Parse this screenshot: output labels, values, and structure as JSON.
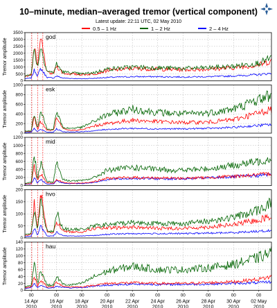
{
  "header": {
    "title": "10–minute, median–averaged tremor (vertical component)",
    "subtitle": "Latest update: 22:11 UTC, 02 May 2010",
    "logo": "star-logo-icon"
  },
  "legend": [
    {
      "label": "0.5 – 1 Hz",
      "color": "#ff0000"
    },
    {
      "label": "1 – 2 Hz",
      "color": "#006400"
    },
    {
      "label": "2 – 4 Hz",
      "color": "#0000ff"
    }
  ],
  "colors": {
    "low": "#ff0000",
    "mid": "#006400",
    "high": "#0000ff",
    "grid": "#b0b0b0",
    "event": "#ff0000"
  },
  "chart_data": {
    "type": "line",
    "ylabel": "Tremor amplitude",
    "x_tick_labels": [
      {
        "time": "00",
        "date": "14 Apr",
        "year": "2010"
      },
      {
        "time": "00",
        "date": "16 Apr",
        "year": "2010"
      },
      {
        "time": "00",
        "date": "18 Apr",
        "year": "2010"
      },
      {
        "time": "00",
        "date": "20 Apr",
        "year": "2010"
      },
      {
        "time": "00",
        "date": "22 Apr",
        "year": "2010"
      },
      {
        "time": "00",
        "date": "24 Apr",
        "year": "2010"
      },
      {
        "time": "00",
        "date": "26 Apr",
        "year": "2010"
      },
      {
        "time": "00",
        "date": "28 Apr",
        "year": "2010"
      },
      {
        "time": "00",
        "date": "30 Apr",
        "year": "2010"
      },
      {
        "time": "00",
        "date": "02 May",
        "year": "2010"
      }
    ],
    "xlim": [
      "2010-04-13T12:00",
      "2010-05-03T00:00"
    ],
    "event_markers": [
      "2010-04-14T01:00",
      "2010-04-14T12:00",
      "2010-04-14T22:00"
    ],
    "panels": [
      {
        "station": "god",
        "ylim": [
          0,
          3500
        ],
        "yticks": [
          0,
          500,
          1000,
          1500,
          2000,
          2500,
          3000,
          3500
        ],
        "key_x": [
          "2010-04-13T12:00",
          "2010-04-14T00:00",
          "2010-04-14T06:00",
          "2010-04-14T12:00",
          "2010-04-14T18:00",
          "2010-04-15T06:00",
          "2010-04-15T18:00",
          "2010-04-16T00:00",
          "2010-04-16T12:00",
          "2010-04-17T00:00",
          "2010-04-18T00:00",
          "2010-04-19T00:00",
          "2010-04-20T00:00",
          "2010-04-22T00:00",
          "2010-04-24T00:00",
          "2010-04-26T00:00",
          "2010-04-28T00:00",
          "2010-04-30T00:00",
          "2010-05-02T00:00",
          "2010-05-03T00:00"
        ],
        "series": [
          {
            "name": "0.5 – 1 Hz",
            "values": [
              300,
              450,
              2600,
              900,
              3100,
              600,
              500,
              1100,
              550,
              500,
              450,
              500,
              750,
              900,
              850,
              800,
              850,
              950,
              1150,
              1450
            ]
          },
          {
            "name": "1 – 2 Hz",
            "values": [
              350,
              500,
              2300,
              1000,
              2500,
              700,
              600,
              1200,
              650,
              600,
              500,
              600,
              850,
              1000,
              950,
              900,
              950,
              1050,
              1300,
              1650
            ]
          },
          {
            "name": "2 – 4 Hz",
            "values": [
              150,
              200,
              800,
              350,
              900,
              250,
              200,
              350,
              200,
              180,
              150,
              180,
              250,
              300,
              300,
              280,
              300,
              350,
              450,
              550
            ]
          }
        ]
      },
      {
        "station": "esk",
        "ylim": [
          0,
          1000
        ],
        "yticks": [
          0,
          200,
          400,
          600,
          800,
          1000
        ],
        "key_x": [
          "2010-04-13T12:00",
          "2010-04-14T00:00",
          "2010-04-14T06:00",
          "2010-04-14T12:00",
          "2010-04-14T18:00",
          "2010-04-15T06:00",
          "2010-04-15T18:00",
          "2010-04-16T00:00",
          "2010-04-16T12:00",
          "2010-04-17T00:00",
          "2010-04-18T00:00",
          "2010-04-19T00:00",
          "2010-04-20T00:00",
          "2010-04-22T00:00",
          "2010-04-24T00:00",
          "2010-04-26T00:00",
          "2010-04-28T00:00",
          "2010-04-30T00:00",
          "2010-05-02T00:00",
          "2010-05-03T00:00"
        ],
        "series": [
          {
            "name": "0.5 – 1 Hz",
            "values": [
              30,
              40,
              350,
              80,
              250,
              60,
              60,
              300,
              90,
              60,
              70,
              150,
              200,
              270,
              240,
              220,
              230,
              280,
              420,
              500
            ]
          },
          {
            "name": "1 – 2 Hz",
            "values": [
              40,
              50,
              450,
              100,
              500,
              80,
              80,
              450,
              120,
              100,
              120,
              250,
              380,
              500,
              430,
              400,
              420,
              500,
              700,
              800
            ]
          },
          {
            "name": "2 – 4 Hz",
            "values": [
              10,
              20,
              100,
              30,
              80,
              20,
              20,
              90,
              30,
              25,
              30,
              50,
              80,
              100,
              90,
              90,
              100,
              120,
              160,
              180
            ]
          }
        ]
      },
      {
        "station": "mid",
        "ylim": [
          0,
          1200
        ],
        "yticks": [
          0,
          200,
          400,
          600,
          800,
          1000,
          1200
        ],
        "key_x": [
          "2010-04-13T12:00",
          "2010-04-14T00:00",
          "2010-04-14T06:00",
          "2010-04-14T12:00",
          "2010-04-14T18:00",
          "2010-04-15T06:00",
          "2010-04-15T18:00",
          "2010-04-16T00:00",
          "2010-04-16T12:00",
          "2010-04-17T00:00",
          "2010-04-18T00:00",
          "2010-04-19T00:00",
          "2010-04-20T00:00",
          "2010-04-22T00:00",
          "2010-04-24T00:00",
          "2010-04-26T00:00",
          "2010-04-28T00:00",
          "2010-04-30T00:00",
          "2010-05-02T00:00",
          "2010-05-03T00:00"
        ],
        "series": [
          {
            "name": "0.5 – 1 Hz",
            "values": [
              40,
              50,
              500,
              100,
              300,
              70,
              60,
              150,
              80,
              60,
              60,
              100,
              180,
              200,
              190,
              180,
              200,
              230,
              270,
              300
            ]
          },
          {
            "name": "1 – 2 Hz",
            "values": [
              60,
              80,
              800,
              150,
              600,
              100,
              90,
              600,
              150,
              120,
              120,
              200,
              380,
              450,
              400,
              380,
              420,
              500,
              600,
              680
            ]
          },
          {
            "name": "2 – 4 Hz",
            "values": [
              30,
              40,
              200,
              60,
              150,
              40,
              40,
              120,
              60,
              50,
              50,
              80,
              150,
              180,
              170,
              170,
              190,
              220,
              250,
              280
            ]
          }
        ]
      },
      {
        "station": "hvo",
        "ylim": [
          0,
          200
        ],
        "yticks": [
          0,
          50,
          100,
          150,
          200
        ],
        "key_x": [
          "2010-04-13T12:00",
          "2010-04-14T00:00",
          "2010-04-14T06:00",
          "2010-04-14T12:00",
          "2010-04-14T18:00",
          "2010-04-15T06:00",
          "2010-04-15T18:00",
          "2010-04-16T00:00",
          "2010-04-16T12:00",
          "2010-04-17T00:00",
          "2010-04-18T00:00",
          "2010-04-19T00:00",
          "2010-04-20T00:00",
          "2010-04-22T00:00",
          "2010-04-24T00:00",
          "2010-04-26T00:00",
          "2010-04-28T00:00",
          "2010-04-30T00:00",
          "2010-05-02T00:00",
          "2010-05-03T00:00"
        ],
        "series": [
          {
            "name": "0.5 – 1 Hz",
            "values": [
              10,
              15,
              150,
              30,
              195,
              25,
              20,
              70,
              30,
              25,
              25,
              40,
              40,
              45,
              40,
              40,
              45,
              55,
              75,
              90
            ]
          },
          {
            "name": "1 – 2 Hz",
            "values": [
              15,
              20,
              120,
              35,
              150,
              30,
              25,
              110,
              40,
              35,
              35,
              50,
              55,
              65,
              60,
              60,
              70,
              85,
              115,
              150
            ]
          },
          {
            "name": "2 – 4 Hz",
            "values": [
              5,
              8,
              40,
              10,
              50,
              8,
              8,
              25,
              10,
              8,
              8,
              10,
              15,
              18,
              18,
              18,
              20,
              22,
              28,
              30
            ]
          }
        ]
      },
      {
        "station": "hau",
        "ylim": [
          0,
          140
        ],
        "yticks": [
          0,
          20,
          40,
          60,
          80,
          100,
          120,
          140
        ],
        "key_x": [
          "2010-04-13T12:00",
          "2010-04-14T00:00",
          "2010-04-14T06:00",
          "2010-04-14T12:00",
          "2010-04-14T18:00",
          "2010-04-15T06:00",
          "2010-04-15T18:00",
          "2010-04-16T00:00",
          "2010-04-16T12:00",
          "2010-04-17T00:00",
          "2010-04-18T00:00",
          "2010-04-19T00:00",
          "2010-04-20T00:00",
          "2010-04-22T00:00",
          "2010-04-24T00:00",
          "2010-04-26T00:00",
          "2010-04-28T00:00",
          "2010-04-30T00:00",
          "2010-05-02T00:00",
          "2010-05-03T00:00"
        ],
        "series": [
          {
            "name": "0.5 – 1 Hz",
            "values": [
              8,
              10,
              40,
              12,
              30,
              10,
              10,
              25,
              12,
              10,
              10,
              15,
              20,
              22,
              20,
              20,
              22,
              25,
              32,
              40
            ]
          },
          {
            "name": "1 – 2 Hz",
            "values": [
              10,
              15,
              80,
              20,
              60,
              15,
              15,
              40,
              18,
              15,
              20,
              40,
              55,
              70,
              60,
              60,
              65,
              75,
              95,
              110
            ]
          },
          {
            "name": "2 – 4 Hz",
            "values": [
              5,
              8,
              20,
              8,
              15,
              7,
              7,
              12,
              8,
              7,
              8,
              12,
              15,
              18,
              17,
              17,
              18,
              20,
              22,
              25
            ]
          }
        ]
      }
    ]
  }
}
